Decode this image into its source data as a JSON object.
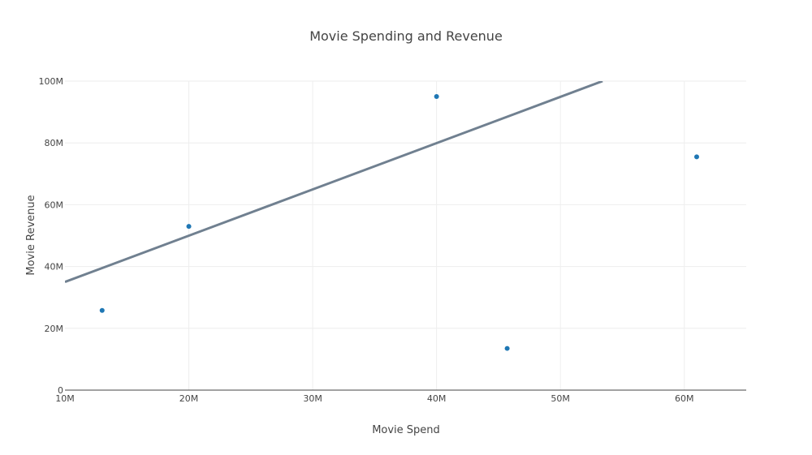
{
  "chart_data": {
    "type": "scatter",
    "title": "Movie Spending and Revenue",
    "xlabel": "Movie Spend",
    "ylabel": "Movie Revenue",
    "xlim": [
      10000000,
      65000000
    ],
    "ylim": [
      0,
      100000000
    ],
    "x_ticks": [
      {
        "value": 10000000,
        "label": "10M"
      },
      {
        "value": 20000000,
        "label": "20M"
      },
      {
        "value": 30000000,
        "label": "30M"
      },
      {
        "value": 40000000,
        "label": "40M"
      },
      {
        "value": 50000000,
        "label": "50M"
      },
      {
        "value": 60000000,
        "label": "60M"
      }
    ],
    "y_ticks": [
      {
        "value": 0,
        "label": "0"
      },
      {
        "value": 20000000,
        "label": "20M"
      },
      {
        "value": 40000000,
        "label": "40M"
      },
      {
        "value": 60000000,
        "label": "60M"
      },
      {
        "value": 80000000,
        "label": "80M"
      },
      {
        "value": 100000000,
        "label": "100M"
      }
    ],
    "grid": true,
    "series": [
      {
        "type": "scatter",
        "color": "#1f77b4",
        "points": [
          {
            "x": 13000000,
            "y": 25800000
          },
          {
            "x": 20000000,
            "y": 53000000
          },
          {
            "x": 40000000,
            "y": 95000000
          },
          {
            "x": 45700000,
            "y": 13500000
          },
          {
            "x": 61000000,
            "y": 75500000
          }
        ]
      },
      {
        "type": "line",
        "color": "#708090",
        "points": [
          {
            "x": 10000000,
            "y": 35000000
          },
          {
            "x": 53400000,
            "y": 100000000
          }
        ]
      }
    ]
  }
}
